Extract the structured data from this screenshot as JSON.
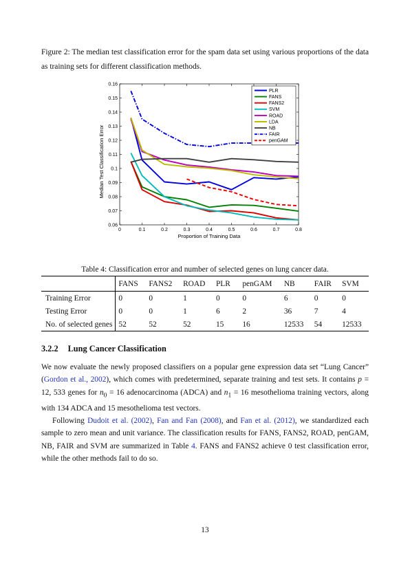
{
  "figure": {
    "caption": "Figure 2: The median test classification error for the spam data set using various proportions of the data as training sets for different classification methods."
  },
  "chart_data": {
    "type": "line",
    "xlabel": "Proportion of Training Data",
    "ylabel": "Median Test Classification Error",
    "xlim": [
      0,
      0.8
    ],
    "ylim": [
      0.06,
      0.16
    ],
    "x_ticks": [
      0,
      0.1,
      0.2,
      0.3,
      0.4,
      0.5,
      0.6,
      0.7,
      0.8
    ],
    "x_tick_labels": [
      "0",
      "0.1",
      "0.2",
      "0.3",
      "0.4",
      "0.5",
      "0.6",
      "0.7",
      "0.8"
    ],
    "y_ticks": [
      0.06,
      0.07,
      0.08,
      0.09,
      0.1,
      0.11,
      0.12,
      0.13,
      0.14,
      0.15,
      0.16
    ],
    "y_tick_labels": [
      "0.06",
      "0.07",
      "0.08",
      "0.09",
      "0.1",
      "0.11",
      "0.12",
      "0.13",
      "0.14",
      "0.15",
      "0.16"
    ],
    "grid": false,
    "legend_position": "top-right",
    "series": [
      {
        "name": "PLR",
        "color": "#0000dd",
        "dash": "solid",
        "x": [
          0.05,
          0.1,
          0.2,
          0.3,
          0.4,
          0.5,
          0.6,
          0.7,
          0.8
        ],
        "y": [
          0.136,
          0.106,
          0.0905,
          0.089,
          0.0905,
          0.085,
          0.0935,
          0.0925,
          0.094
        ]
      },
      {
        "name": "FANS",
        "color": "#008000",
        "dash": "solid",
        "x": [
          0.05,
          0.1,
          0.2,
          0.3,
          0.4,
          0.5,
          0.6,
          0.7,
          0.8
        ],
        "y": [
          0.105,
          0.087,
          0.08,
          0.0778,
          0.0725,
          0.0742,
          0.0738,
          0.0718,
          0.0697
        ]
      },
      {
        "name": "FANS2",
        "color": "#dd0000",
        "dash": "solid",
        "x": [
          0.05,
          0.1,
          0.2,
          0.3,
          0.4,
          0.5,
          0.6,
          0.7,
          0.8
        ],
        "y": [
          0.105,
          0.085,
          0.0765,
          0.074,
          0.0695,
          0.07,
          0.0685,
          0.065,
          0.0635
        ]
      },
      {
        "name": "SVM",
        "color": "#00bbbb",
        "dash": "solid",
        "x": [
          0.05,
          0.1,
          0.2,
          0.3,
          0.4,
          0.5,
          0.6,
          0.7,
          0.8
        ],
        "y": [
          0.111,
          0.095,
          0.08,
          0.0735,
          0.0705,
          0.0685,
          0.0655,
          0.064,
          0.0635
        ]
      },
      {
        "name": "ROAD",
        "color": "#bb00bb",
        "dash": "solid",
        "x": [
          0.05,
          0.1,
          0.2,
          0.3,
          0.4,
          0.5,
          0.6,
          0.7,
          0.8
        ],
        "y": [
          0.135,
          0.112,
          0.106,
          0.1025,
          0.101,
          0.099,
          0.0975,
          0.095,
          0.0945
        ]
      },
      {
        "name": "LDA",
        "color": "#bbbb00",
        "dash": "solid",
        "x": [
          0.05,
          0.1,
          0.2,
          0.3,
          0.4,
          0.5,
          0.6,
          0.7,
          0.8
        ],
        "y": [
          0.136,
          0.113,
          0.103,
          0.1012,
          0.1002,
          0.0985,
          0.0955,
          0.094,
          0.0928
        ]
      },
      {
        "name": "NB",
        "color": "#404040",
        "dash": "solid",
        "x": [
          0.05,
          0.1,
          0.2,
          0.3,
          0.4,
          0.5,
          0.6,
          0.7,
          0.8
        ],
        "y": [
          0.1045,
          0.1065,
          0.107,
          0.107,
          0.1045,
          0.107,
          0.1062,
          0.105,
          0.1045
        ]
      },
      {
        "name": "FAIR",
        "color": "#0000dd",
        "dash": "dashdot",
        "x": [
          0.05,
          0.1,
          0.2,
          0.3,
          0.4,
          0.5,
          0.6,
          0.7,
          0.8
        ],
        "y": [
          0.155,
          0.135,
          0.125,
          0.117,
          0.1155,
          0.118,
          0.118,
          0.118,
          0.118
        ]
      },
      {
        "name": "penGAM",
        "color": "#ee0000",
        "dash": "dashed",
        "x": [
          0.3,
          0.4,
          0.5,
          0.6,
          0.7,
          0.8
        ],
        "y": [
          0.0925,
          0.0865,
          0.0835,
          0.078,
          0.0745,
          0.0735
        ]
      }
    ]
  },
  "table": {
    "caption": "Table 4: Classification error and number of selected genes on lung cancer data.",
    "columns": [
      "",
      "FANS",
      "FANS2",
      "ROAD",
      "PLR",
      "penGAM",
      "NB",
      "FAIR",
      "SVM"
    ],
    "rows": [
      [
        "Training Error",
        "0",
        "0",
        "1",
        "0",
        "0",
        "6",
        "0",
        "0"
      ],
      [
        "Testing Error",
        "0",
        "0",
        "1",
        "6",
        "2",
        "36",
        "7",
        "4"
      ],
      [
        "No. of selected genes",
        "52",
        "52",
        "52",
        "15",
        "16",
        "12533",
        "54",
        "12533"
      ]
    ]
  },
  "section": {
    "number": "3.2.2",
    "title": "Lung Cancer Classification"
  },
  "paragraph1": {
    "t1": "We now evaluate the newly proposed classifiers on a popular gene expression data set “Lung Cancer” (",
    "c1": "Gordon et al., 2002",
    "t2": "), which comes with predetermined, separate training and test sets.  It contains ",
    "m1": "p",
    "t3": " = 12, 533 genes for ",
    "m2": "n",
    "s2": "0",
    "t4": " = 16 adenocarcinoma (ADCA) and ",
    "m3": "n",
    "s3": "1",
    "t5": " = 16 mesothelioma training vectors, along with 134 ADCA and 15 mesothelioma test vectors."
  },
  "paragraph2": {
    "t1": "Following ",
    "c1": "Dudoit et al. (2002)",
    "t2": ", ",
    "c2": "Fan and Fan (2008)",
    "t3": ", and ",
    "c3": "Fan et al. (2012)",
    "t4": ", we standardized each sample to zero mean and unit variance.  The classification results for FANS, FANS2, ROAD, penGAM, NB, FAIR and SVM are summarized in Table ",
    "c4": "4",
    "t5": ".  FANS and FANS2 achieve 0 test classification error, while the other methods fail to do so."
  },
  "page_number": "13"
}
